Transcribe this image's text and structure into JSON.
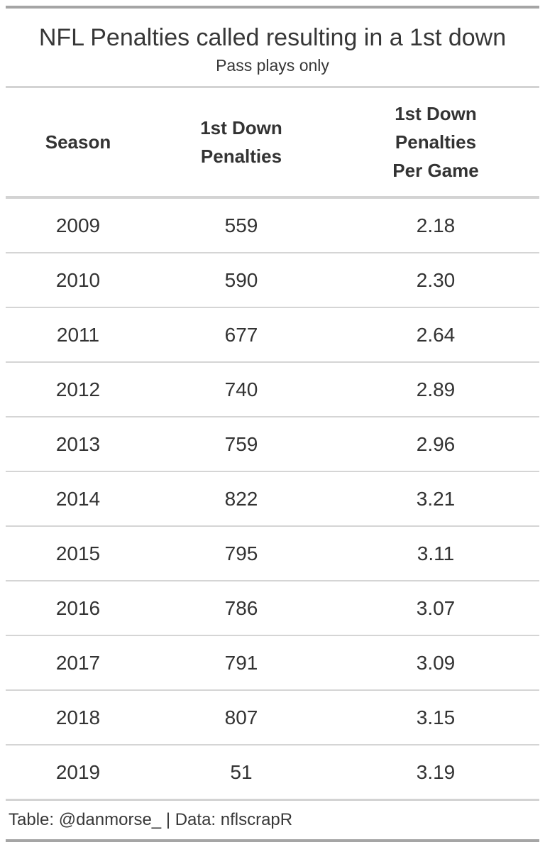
{
  "chart_data": {
    "type": "table",
    "title": "NFL Penalties called resulting in a 1st down",
    "subtitle": "Pass plays only",
    "columns": [
      "Season",
      "1st Down Penalties",
      "1st Down Penalties Per Game"
    ],
    "rows_display": [
      [
        "2009",
        "559",
        "2.18"
      ],
      [
        "2010",
        "590",
        "2.30"
      ],
      [
        "2011",
        "677",
        "2.64"
      ],
      [
        "2012",
        "740",
        "2.89"
      ],
      [
        "2013",
        "759",
        "2.96"
      ],
      [
        "2014",
        "822",
        "3.21"
      ],
      [
        "2015",
        "795",
        "3.11"
      ],
      [
        "2016",
        "786",
        "3.07"
      ],
      [
        "2017",
        "791",
        "3.09"
      ],
      [
        "2018",
        "807",
        "3.15"
      ],
      [
        "2019",
        "51",
        "3.19"
      ]
    ],
    "seasons": [
      2009,
      2010,
      2011,
      2012,
      2013,
      2014,
      2015,
      2016,
      2017,
      2018,
      2019
    ],
    "first_down_penalties": [
      559,
      590,
      677,
      740,
      759,
      822,
      795,
      786,
      791,
      807,
      51
    ],
    "first_down_penalties_per_game": [
      2.18,
      2.3,
      2.64,
      2.89,
      2.96,
      3.21,
      3.11,
      3.07,
      3.09,
      3.15,
      3.19
    ],
    "source_note": "Table: @danmorse_ | Data: nflscrapR",
    "layout": {
      "legend": "none",
      "grid": "horizontal-row-separators-only",
      "alignment": "center"
    },
    "colors": {
      "outer_border": "#a5a5a5",
      "inner_border": "#d3d3d3",
      "text": "#333333",
      "background": "#ffffff"
    }
  }
}
